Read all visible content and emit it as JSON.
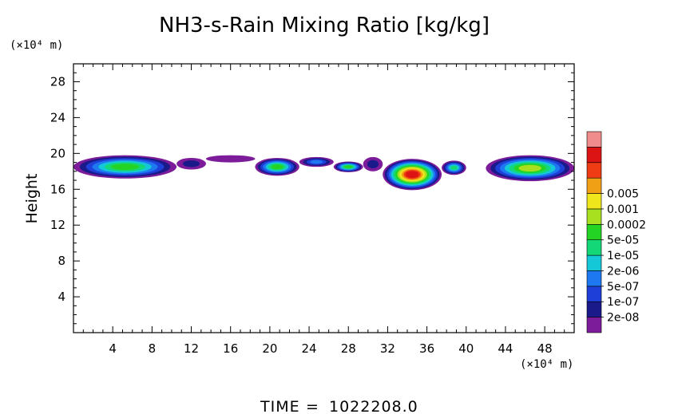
{
  "chart_data": {
    "type": "heatmap",
    "title": "NH3-s-Rain Mixing Ratio [kg/kg]",
    "ylabel": "Height",
    "x_unit_label": "(×10⁴ m)",
    "y_unit_label": "(×10⁴ m)",
    "xlim": [
      0,
      51
    ],
    "ylim": [
      0,
      30
    ],
    "x_ticks": [
      4,
      8,
      12,
      16,
      20,
      24,
      28,
      32,
      36,
      40,
      44,
      48
    ],
    "x_tick_labels": [
      "4",
      "8",
      "12",
      "16",
      "20",
      "24",
      "28",
      "32",
      "36",
      "40",
      "44",
      "48"
    ],
    "y_ticks": [
      4,
      8,
      12,
      16,
      20,
      24,
      28
    ],
    "y_tick_labels": [
      "4",
      "8",
      "12",
      "16",
      "20",
      "24",
      "28"
    ],
    "colorbar": {
      "labels": [
        "0.005",
        "0.001",
        "0.0002",
        "5e-05",
        "1e-05",
        "2e-06",
        "5e-07",
        "1e-07",
        "2e-08"
      ],
      "colors": [
        "#7c1c9a",
        "#1a1a8a",
        "#1e3fd8",
        "#1e78f0",
        "#14c8d8",
        "#14d878",
        "#24d424",
        "#a8e020",
        "#f0e61c",
        "#f0a014",
        "#f03c14",
        "#dc1414",
        "#f08c8c"
      ]
    },
    "regions": [
      {
        "x": [
          0,
          10.5
        ],
        "y": [
          17.2,
          19.8
        ],
        "peak_level": 6
      },
      {
        "x": [
          10.5,
          13.5
        ],
        "y": [
          18.2,
          19.5
        ],
        "peak_level": 1
      },
      {
        "x": [
          13.5,
          18.5
        ],
        "y": [
          19.0,
          19.8
        ],
        "peak_level": 0
      },
      {
        "x": [
          18.5,
          23.0
        ],
        "y": [
          17.5,
          19.5
        ],
        "peak_level": 6
      },
      {
        "x": [
          23.0,
          26.5
        ],
        "y": [
          18.5,
          19.6
        ],
        "peak_level": 3
      },
      {
        "x": [
          26.5,
          29.5
        ],
        "y": [
          17.9,
          19.1
        ],
        "peak_level": 6
      },
      {
        "x": [
          29.5,
          31.5
        ],
        "y": [
          18.0,
          19.6
        ],
        "peak_level": 1
      },
      {
        "x": [
          31.5,
          37.5
        ],
        "y": [
          15.9,
          19.4
        ],
        "peak_level": 11
      },
      {
        "x": [
          37.5,
          40.0
        ],
        "y": [
          17.6,
          19.2
        ],
        "peak_level": 5
      },
      {
        "x": [
          42.0,
          51.0
        ],
        "y": [
          16.9,
          19.8
        ],
        "peak_level": 7
      }
    ]
  },
  "footer": {
    "time_label": "TIME",
    "time_equals": "=",
    "time_value": "1022208.0"
  }
}
